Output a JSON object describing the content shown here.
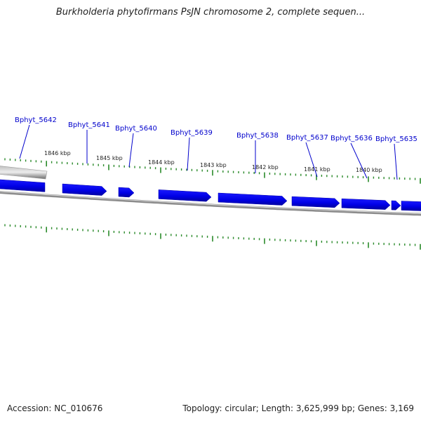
{
  "title": "Burkholderia phytofirmans PsJN chromosome 2, complete sequen...",
  "footer": {
    "accession": "Accession: NC_010676",
    "summary": "Topology: circular; Length: 3,625,999 bp; Genes: 3,169"
  },
  "colors": {
    "gene_fill": "#0000ee",
    "gene_dark": "#0000aa",
    "backbone": "#8c8c8c",
    "tick": "#2a8a2a",
    "gene_label": "#0000cc"
  },
  "kbp_labels": [
    "1846 kbp",
    "1845 kbp",
    "1844 kbp",
    "1843 kbp",
    "1842 kbp",
    "1841 kbp",
    "1840 kbp"
  ],
  "genes": [
    "Bphyt_5642",
    "Bphyt_5641",
    "Bphyt_5640",
    "Bphyt_5639",
    "Bphyt_5638",
    "Bphyt_5637",
    "Bphyt_5636",
    "Bphyt_5635"
  ]
}
